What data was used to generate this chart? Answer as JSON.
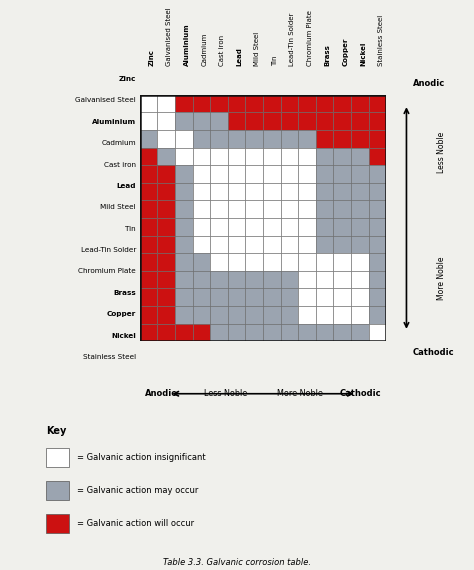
{
  "materials": [
    "Zinc",
    "Galvanised Steel",
    "Aluminium",
    "Cadmium",
    "Cast iron",
    "Lead",
    "Mild Steel",
    "Tin",
    "Lead-Tin Solder",
    "Chromium Plate",
    "Brass",
    "Copper",
    "Nickel",
    "Stainless Steel"
  ],
  "colors": {
    "W": "#FFFFFF",
    "G": "#9BA4B0",
    "R": "#CC1111"
  },
  "grid": [
    [
      "W",
      "W",
      "R",
      "R",
      "R",
      "R",
      "R",
      "R",
      "R",
      "R",
      "R",
      "R",
      "R",
      "R"
    ],
    [
      "W",
      "W",
      "G",
      "G",
      "G",
      "R",
      "R",
      "R",
      "R",
      "R",
      "R",
      "R",
      "R",
      "R"
    ],
    [
      "G",
      "W",
      "W",
      "G",
      "G",
      "G",
      "G",
      "G",
      "G",
      "G",
      "R",
      "R",
      "R",
      "R"
    ],
    [
      "R",
      "G",
      "W",
      "W",
      "W",
      "W",
      "W",
      "W",
      "W",
      "W",
      "G",
      "G",
      "G",
      "R"
    ],
    [
      "R",
      "R",
      "G",
      "W",
      "W",
      "W",
      "W",
      "W",
      "W",
      "W",
      "G",
      "G",
      "G",
      "G"
    ],
    [
      "R",
      "R",
      "G",
      "W",
      "W",
      "W",
      "W",
      "W",
      "W",
      "W",
      "G",
      "G",
      "G",
      "G"
    ],
    [
      "R",
      "R",
      "G",
      "W",
      "W",
      "W",
      "W",
      "W",
      "W",
      "W",
      "G",
      "G",
      "G",
      "G"
    ],
    [
      "R",
      "R",
      "G",
      "W",
      "W",
      "W",
      "W",
      "W",
      "W",
      "W",
      "G",
      "G",
      "G",
      "G"
    ],
    [
      "R",
      "R",
      "G",
      "W",
      "W",
      "W",
      "W",
      "W",
      "W",
      "W",
      "G",
      "G",
      "G",
      "G"
    ],
    [
      "R",
      "R",
      "G",
      "G",
      "W",
      "W",
      "W",
      "W",
      "W",
      "W",
      "W",
      "W",
      "W",
      "G"
    ],
    [
      "R",
      "R",
      "G",
      "G",
      "G",
      "G",
      "G",
      "G",
      "G",
      "W",
      "W",
      "W",
      "W",
      "G"
    ],
    [
      "R",
      "R",
      "G",
      "G",
      "G",
      "G",
      "G",
      "G",
      "G",
      "W",
      "W",
      "W",
      "W",
      "G"
    ],
    [
      "R",
      "R",
      "G",
      "G",
      "G",
      "G",
      "G",
      "G",
      "G",
      "W",
      "W",
      "W",
      "W",
      "G"
    ],
    [
      "R",
      "R",
      "R",
      "R",
      "G",
      "G",
      "G",
      "G",
      "G",
      "G",
      "G",
      "G",
      "G",
      "W"
    ]
  ],
  "title": "Table 3.3. Galvanic corrosion table.",
  "bg_color": "#F0F0EC",
  "grid_line_color": "#666666",
  "border_color": "#111111",
  "key_items": [
    {
      "color": "#FFFFFF",
      "label": "= Galvanic action insignificant"
    },
    {
      "color": "#9BA4B0",
      "label": "= Galvanic action may occur"
    },
    {
      "color": "#CC1111",
      "label": "= Galvanic action will occur"
    }
  ],
  "arrow_label_left": "Anodic",
  "arrow_label_right": "Cathodic",
  "arrow_label_center_left": "Less Noble",
  "arrow_label_center_right": "More Noble",
  "right_label_top": "Anodic",
  "right_label_bottom": "Cathodic",
  "right_label_less": "Less Noble",
  "right_label_more": "More Noble",
  "bold_rows": [
    "Zinc",
    "Aluminium",
    "Lead",
    "Brass",
    "Copper",
    "Nickel"
  ],
  "bold_cols": [
    "Zinc",
    "Aluminium",
    "Lead",
    "Brass",
    "Copper",
    "Nickel"
  ]
}
